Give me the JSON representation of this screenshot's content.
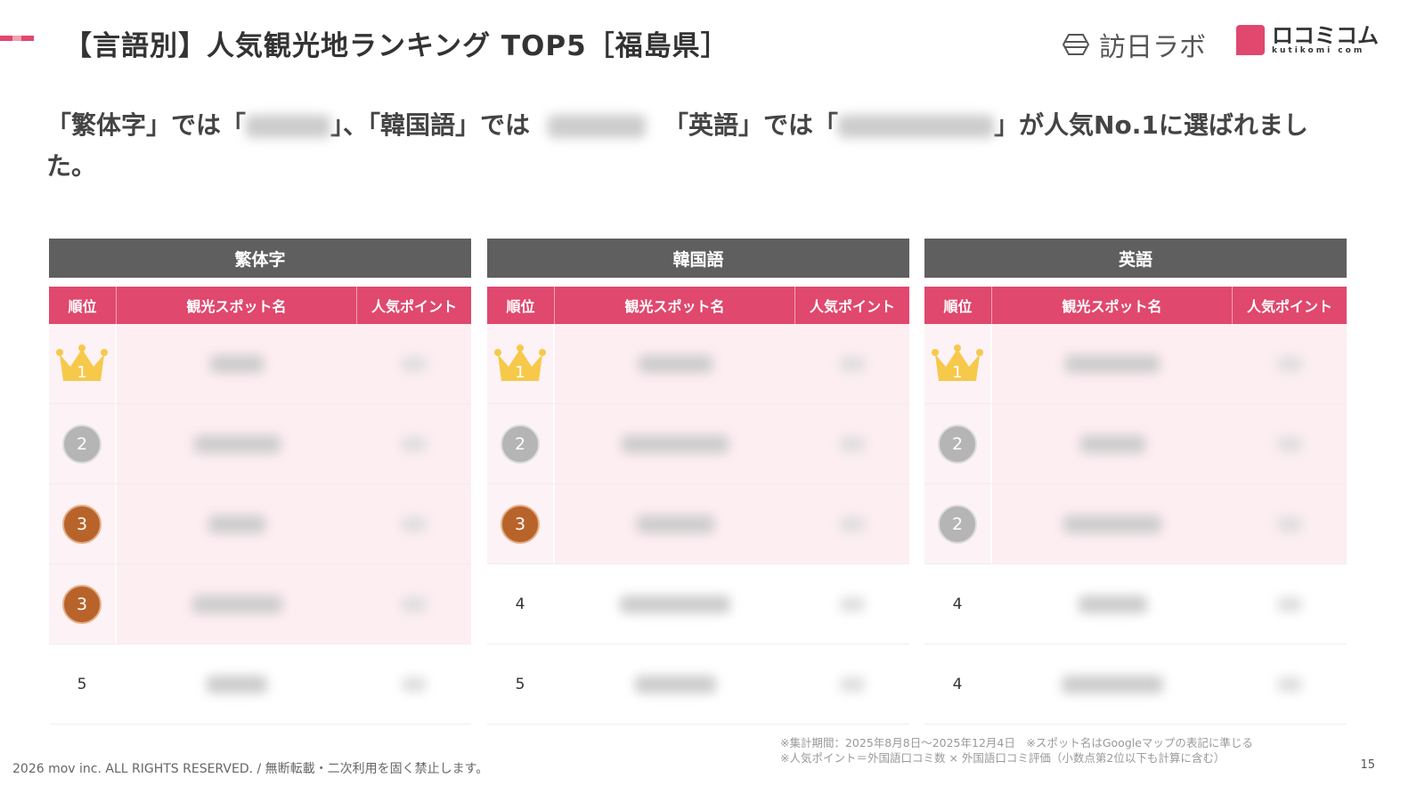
{
  "title": "【言語別】人気観光地ランキング TOP5［福島県］",
  "logos": {
    "houjin_lab": "訪日ラボ",
    "kutikomi": "ロコミコム",
    "kutikomi_sub": "kutikomi com"
  },
  "lead": {
    "p1": "「繁体字」では「",
    "p2": "」、「韓国語」では",
    "p3": "「英語」では「",
    "p4": "」が人気No.1に選ばれました。"
  },
  "colors": {
    "accent": "#e0486e",
    "group_header": "#5f5f5f",
    "row_highlight": "#fdeef2",
    "silver": "#b5b5b5",
    "bronze": "#b8632a",
    "gold": "#f6c94a"
  },
  "columns": {
    "rank": "順位",
    "name": "観光スポット名",
    "points": "人気ポイント"
  },
  "tables": [
    {
      "language": "繁体字",
      "ranks": [
        "1",
        "2",
        "3",
        "3",
        "5"
      ],
      "highlight_rows": 4
    },
    {
      "language": "韓国語",
      "ranks": [
        "1",
        "2",
        "3",
        "4",
        "5"
      ],
      "highlight_rows": 3
    },
    {
      "language": "英語",
      "ranks": [
        "1",
        "2",
        "2",
        "4",
        "4"
      ],
      "highlight_rows": 3
    }
  ],
  "notes": [
    "※集計期間：2025年8月8日～2025年12月4日　※スポット名はGoogleマップの表記に準じる",
    "※人気ポイント＝外国語口コミ数 × 外国語口コミ評価（小数点第2位以下も計算に含む）"
  ],
  "footer": "2026 mov inc. ALL RIGHTS RESERVED. / 無断転載・二次利用を固く禁止します。",
  "page_number": "15"
}
